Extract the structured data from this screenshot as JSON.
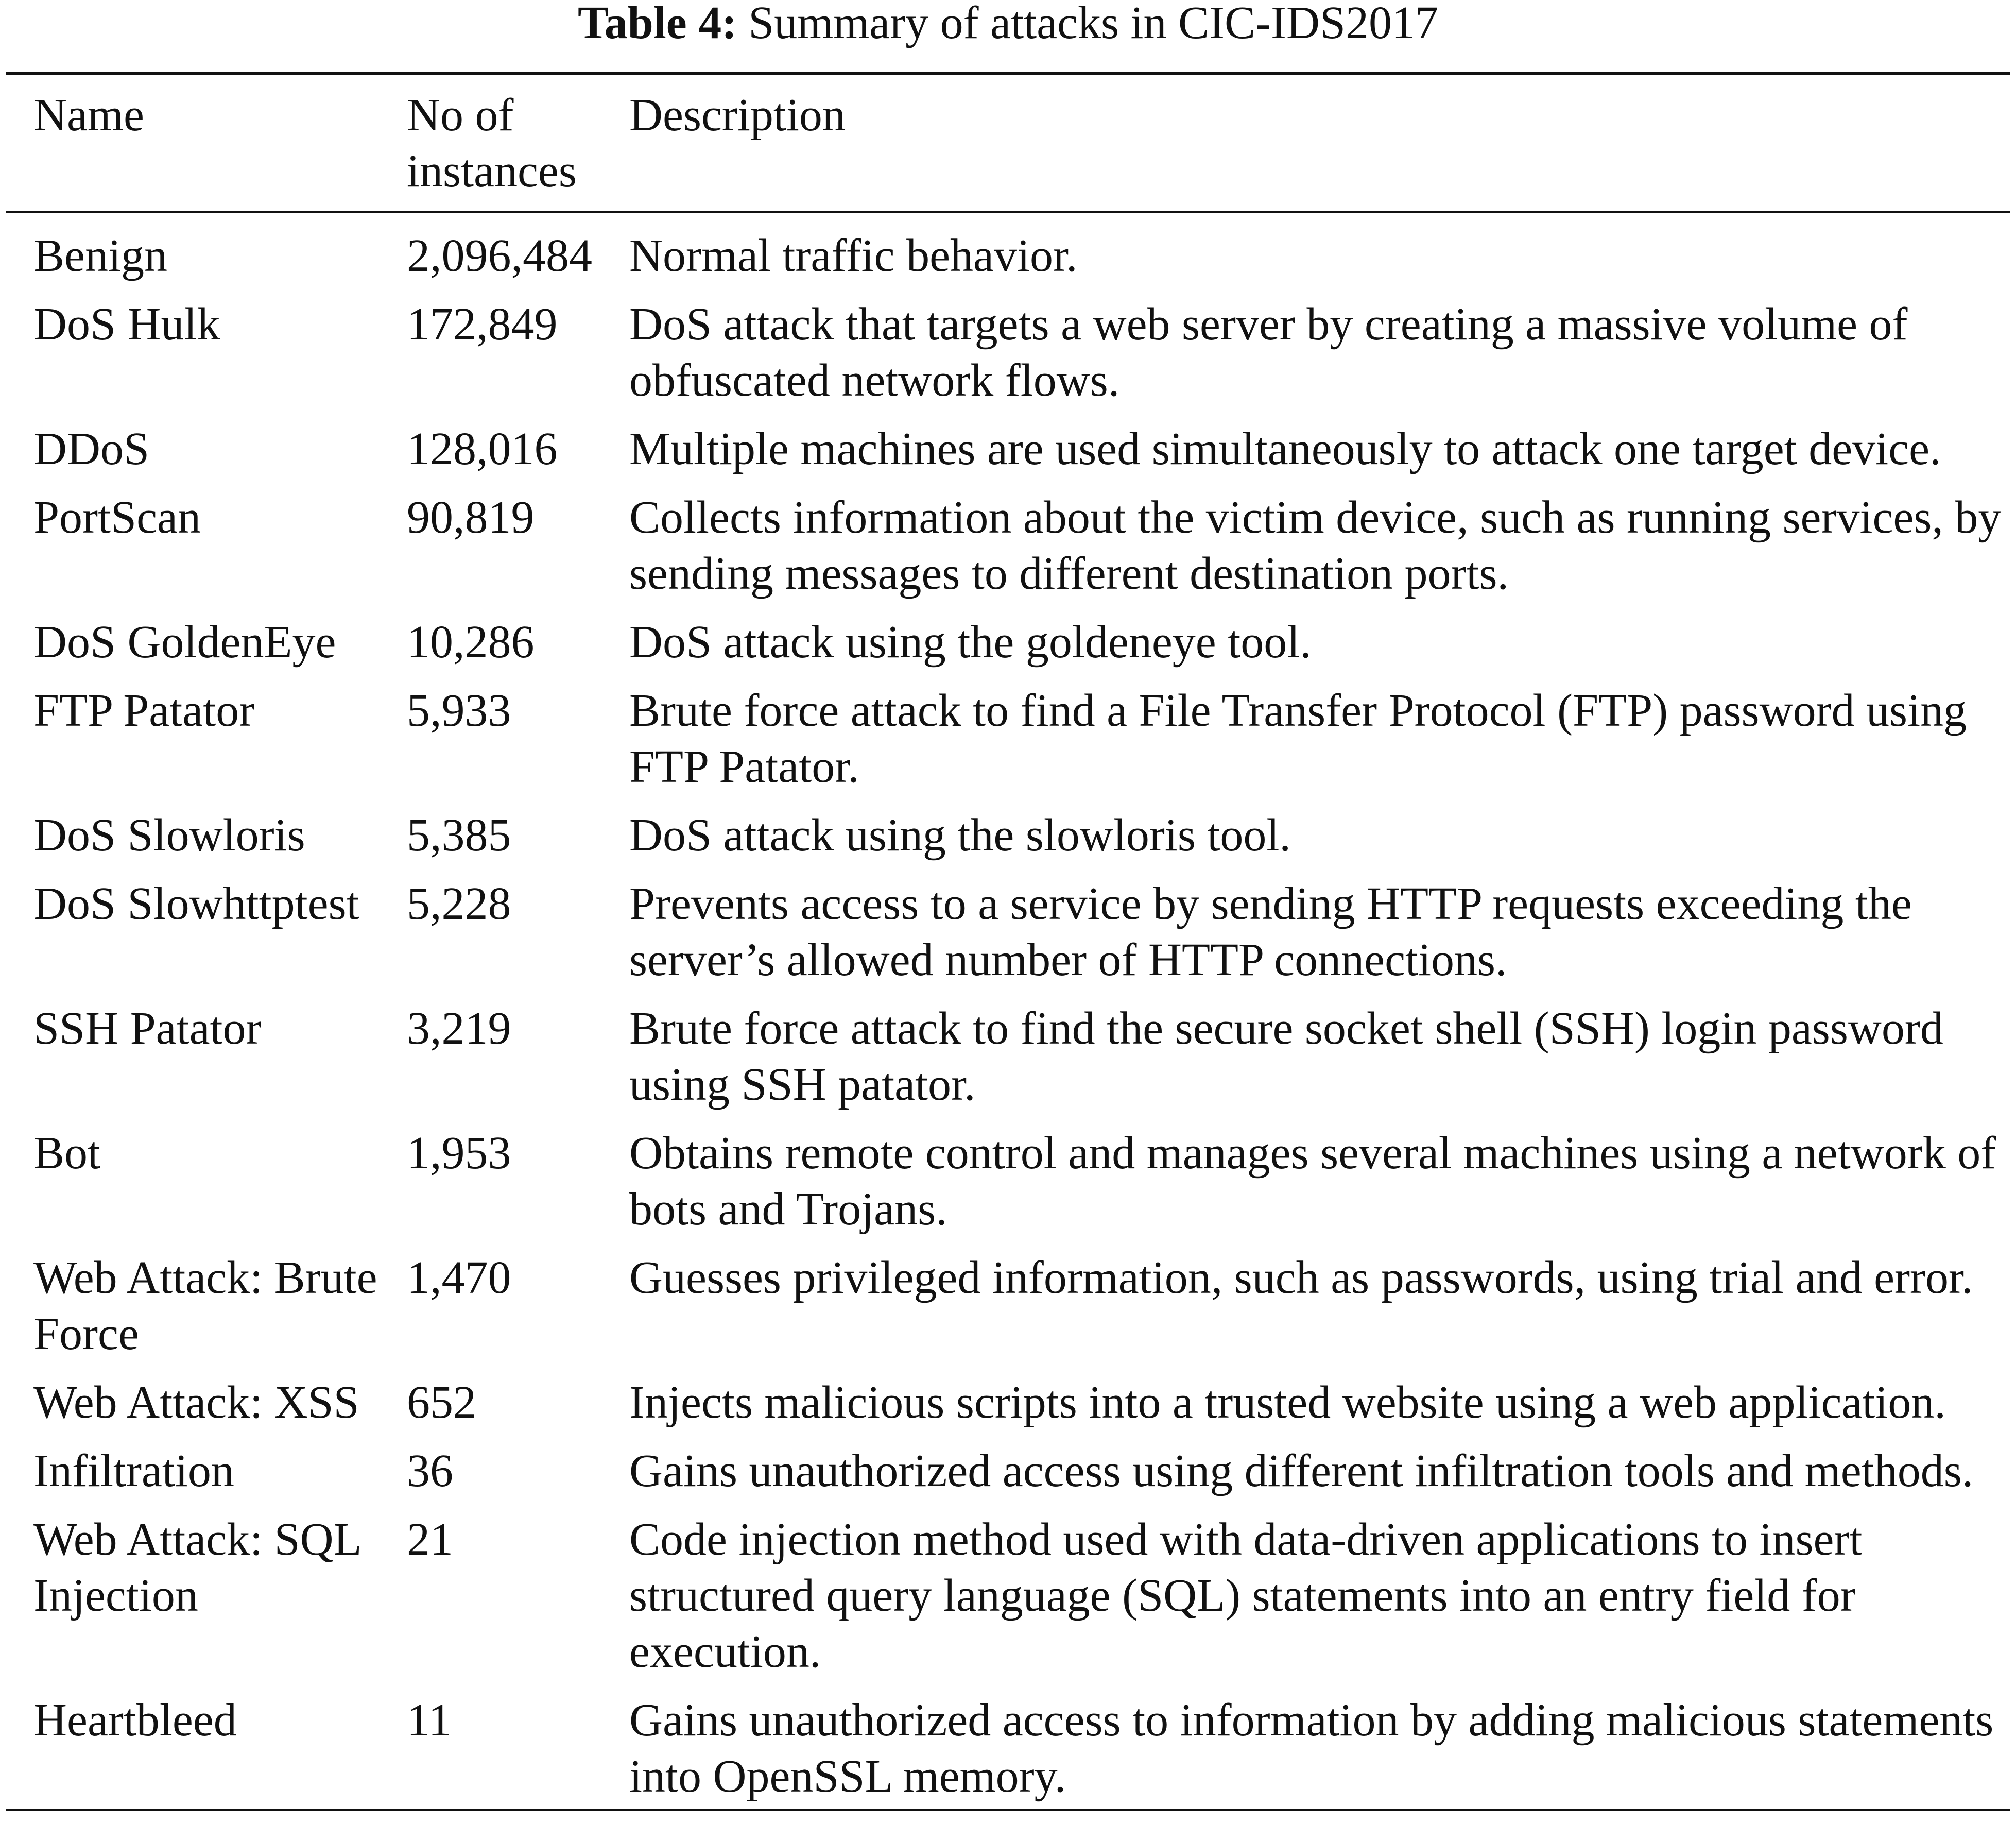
{
  "caption": {
    "label": "Table 4:",
    "title": "Summary of attacks in CIC-IDS2017"
  },
  "table": {
    "header": [
      "Name",
      "No of instances",
      "Description"
    ],
    "rows": [
      [
        "Benign",
        "2,096,484",
        "Normal traffic behavior."
      ],
      [
        "DoS Hulk",
        "172,849",
        "DoS attack that targets a web server by creating a massive volume of obfuscated network flows."
      ],
      [
        "DDoS",
        "128,016",
        "Multiple machines are used simultaneously to attack one target device."
      ],
      [
        "PortScan",
        "90,819",
        "Collects information about the victim device, such as running services, by sending messages to different destination ports."
      ],
      [
        "DoS GoldenEye",
        "10,286",
        "DoS attack using the goldeneye tool."
      ],
      [
        "FTP Patator",
        "5,933",
        "Brute force attack to find a File Transfer Protocol (FTP) password using FTP Patator."
      ],
      [
        "DoS Slowloris",
        "5,385",
        "DoS attack using the slowloris tool."
      ],
      [
        "DoS Slowhttptest",
        "5,228",
        "Prevents access to a service by sending HTTP requests exceeding the server’s allowed number of HTTP connections."
      ],
      [
        "SSH Patator",
        "3,219",
        "Brute force attack to find the secure socket shell (SSH) login password using SSH patator."
      ],
      [
        "Bot",
        "1,953",
        "Obtains remote control and manages several machines using a network of bots and Trojans."
      ],
      [
        "Web Attack: Brute Force",
        "1,470",
        "Guesses privileged information, such as passwords, using trial and error."
      ],
      [
        "Web Attack: XSS",
        "652",
        "Injects malicious scripts into a trusted website using a web application."
      ],
      [
        "Infiltration",
        "36",
        "Gains unauthorized access using different infiltration tools and methods."
      ],
      [
        "Web Attack: SQL Injection",
        "21",
        "Code injection method used with data-driven applications to insert structured query language (SQL) statements into an entry field for execution."
      ],
      [
        "Heartbleed",
        "11",
        "Gains unauthorized access to information by adding malicious statements into OpenSSL memory."
      ]
    ]
  }
}
